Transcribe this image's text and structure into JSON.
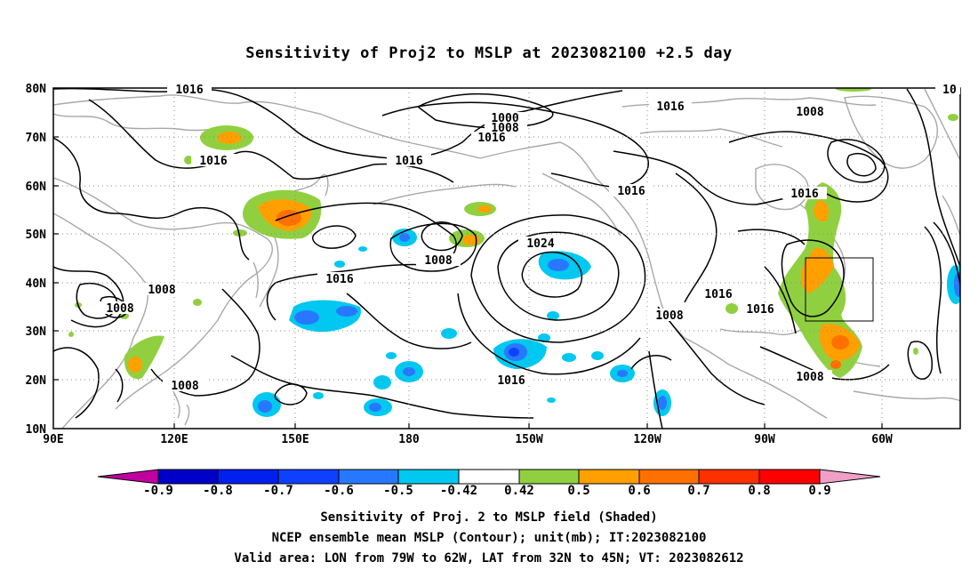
{
  "title": "Sensitivity of Proj2 to MSLP at 2023082100 +2.5 day",
  "lat_labels": [
    "80N",
    "70N",
    "60N",
    "50N",
    "40N",
    "30N",
    "20N",
    "10N"
  ],
  "lon_labels": [
    "90E",
    "120E",
    "150E",
    "180",
    "150W",
    "120W",
    "90W",
    "60W"
  ],
  "contour_labels": [
    "1016",
    "1016",
    "1016",
    "1000",
    "1008",
    "1016",
    "1016",
    "1008",
    "1016",
    "1016",
    "1008",
    "1024",
    "1016",
    "1008",
    "1016",
    "1016",
    "1008",
    "1008",
    "1008",
    "1016",
    "1008",
    "10"
  ],
  "colorbar": {
    "labels": [
      "-0.9",
      "-0.8",
      "-0.7",
      "-0.6",
      "-0.5",
      "-0.42",
      "0.42",
      "0.5",
      "0.6",
      "0.7",
      "0.8",
      "0.9"
    ],
    "colors": [
      "#c000a0",
      "#0000c8",
      "#0020f0",
      "#1040ff",
      "#2878ff",
      "#00c8f0",
      "#ffffff",
      "#90d040",
      "#ffa000",
      "#ff7000",
      "#ff3000",
      "#ff0000",
      "#f0a0c8"
    ]
  },
  "footer": {
    "line1": "Sensitivity of Proj. 2 to MSLP field (Shaded)",
    "line2": "NCEP ensemble mean MSLP (Contour); unit(mb); IT:2023082100",
    "line3": "Valid area: LON from 79W to 62W, LAT from 32N to 45N; VT: 2023082612"
  },
  "valid_area": {
    "lon_min": -79,
    "lon_max": -62,
    "lat_min": 32,
    "lat_max": 45
  },
  "colors": {
    "coast": "#a8a8a8",
    "contour": "#000000",
    "grid": "#888888"
  }
}
